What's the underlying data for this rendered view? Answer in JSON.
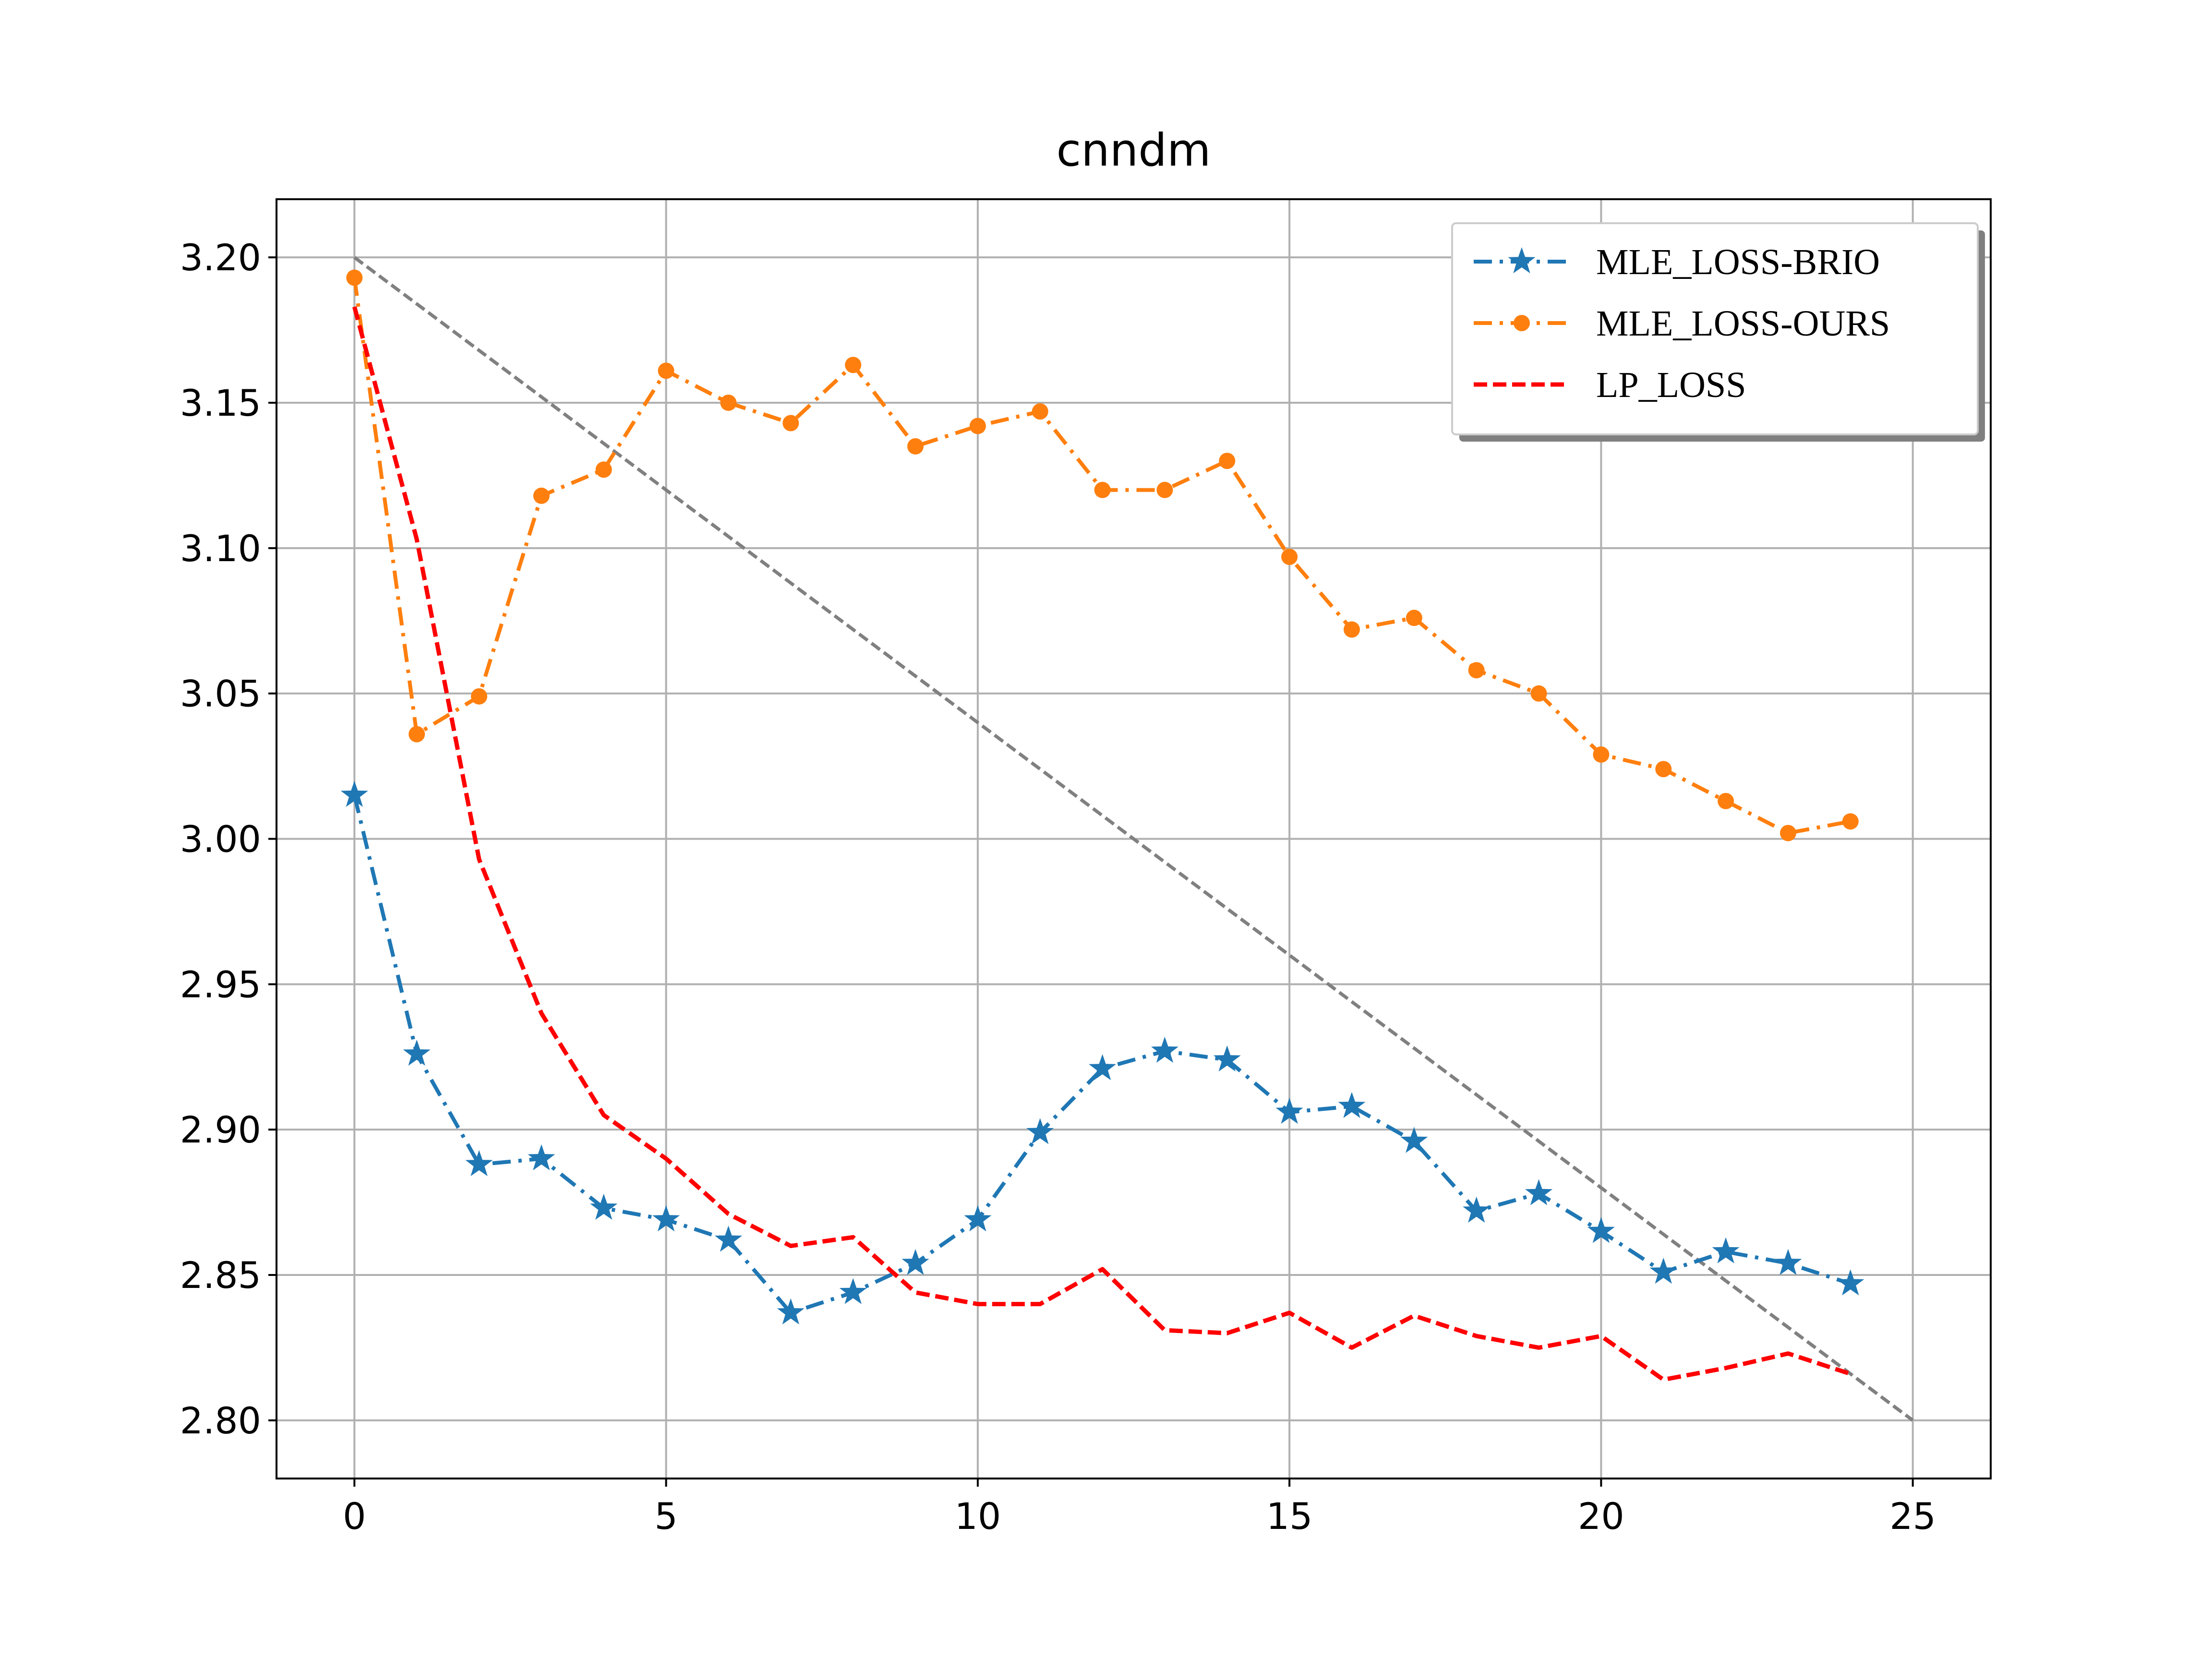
{
  "chart_data": {
    "type": "line",
    "title": "cnndm",
    "xlabel": "",
    "ylabel": "",
    "xlim": [
      -1.25,
      26.25
    ],
    "ylim": [
      2.78,
      3.22
    ],
    "xticks": [
      0,
      5,
      10,
      15,
      20,
      25
    ],
    "xtick_labels": [
      "0",
      "5",
      "10",
      "15",
      "20",
      "25"
    ],
    "yticks": [
      2.8,
      2.85,
      2.9,
      2.95,
      3.0,
      3.05,
      3.1,
      3.15,
      3.2
    ],
    "ytick_labels": [
      "2.80",
      "2.85",
      "2.90",
      "2.95",
      "3.00",
      "3.05",
      "3.10",
      "3.15",
      "3.20"
    ],
    "grid": true,
    "legend_position": "top-right",
    "x": [
      0,
      1,
      2,
      3,
      4,
      5,
      6,
      7,
      8,
      9,
      10,
      11,
      12,
      13,
      14,
      15,
      16,
      17,
      18,
      19,
      20,
      21,
      22,
      23,
      24
    ],
    "series": [
      {
        "name": "MLE_LOSS-BRIO",
        "color": "#1f77b4",
        "marker": "star",
        "linestyle": "dashdot",
        "values": [
          3.015,
          2.926,
          2.888,
          2.89,
          2.873,
          2.869,
          2.862,
          2.837,
          2.844,
          2.854,
          2.869,
          2.899,
          2.921,
          2.927,
          2.924,
          2.906,
          2.908,
          2.896,
          2.872,
          2.878,
          2.865,
          2.851,
          2.858,
          2.854,
          2.847
        ]
      },
      {
        "name": "MLE_LOSS-OURS",
        "color": "#ff7f0e",
        "marker": "circle",
        "linestyle": "dashdot",
        "values": [
          3.193,
          3.036,
          3.049,
          3.118,
          3.127,
          3.161,
          3.15,
          3.143,
          3.163,
          3.135,
          3.142,
          3.147,
          3.12,
          3.12,
          3.13,
          3.097,
          3.072,
          3.076,
          3.058,
          3.05,
          3.029,
          3.024,
          3.013,
          3.002,
          3.006
        ]
      },
      {
        "name": "LP_LOSS",
        "color": "#ff0000",
        "marker": "none",
        "linestyle": "dashed",
        "values": [
          3.183,
          3.103,
          2.993,
          2.94,
          2.905,
          2.89,
          2.871,
          2.86,
          2.863,
          2.844,
          2.84,
          2.84,
          2.852,
          2.831,
          2.83,
          2.837,
          2.825,
          2.836,
          2.829,
          2.825,
          2.829,
          2.814,
          2.818,
          2.823,
          2.816
        ]
      }
    ],
    "reference_line": {
      "color": "#808080",
      "linestyle": "dashed",
      "x": [
        0,
        25
      ],
      "y": [
        3.2,
        2.8
      ]
    }
  }
}
